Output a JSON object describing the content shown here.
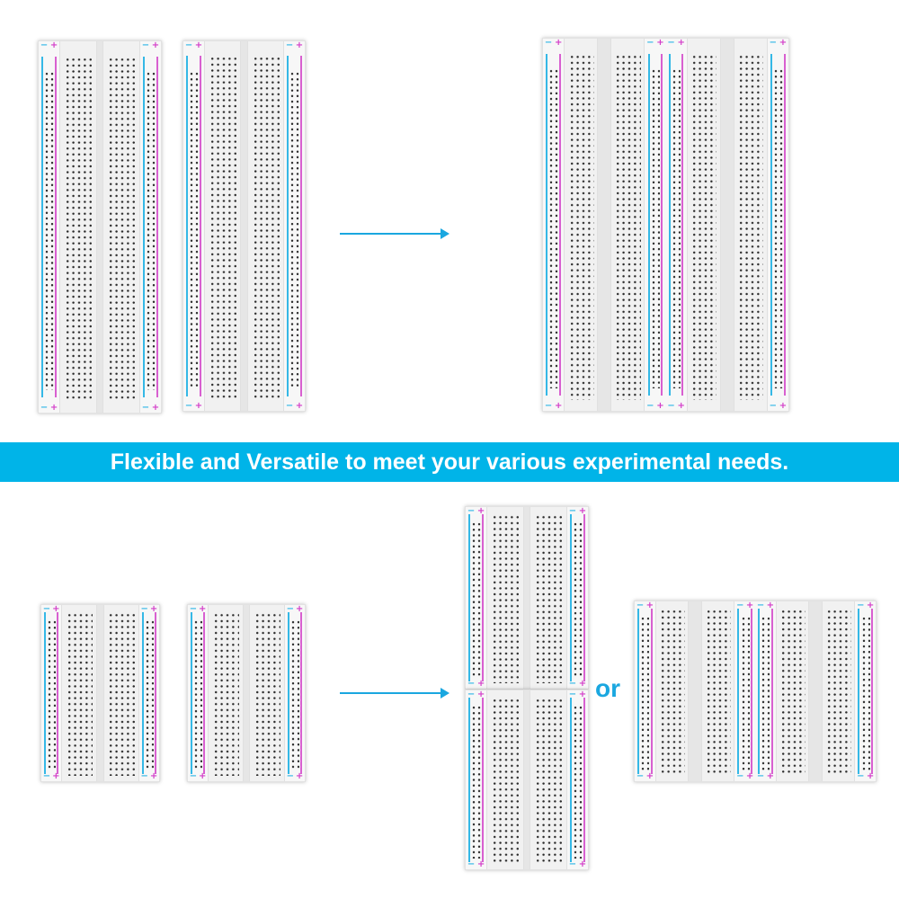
{
  "banner": {
    "text": "Flexible and Versatile to meet your various experimental needs.",
    "color": "#00b4e8"
  },
  "connector_word": "or",
  "rail_labels": {
    "minus": "−",
    "plus": "+"
  },
  "colors": {
    "accent": "#1aa7e0",
    "rail_blue": "#35b8e6",
    "rail_pink": "#d860d0"
  },
  "sections": {
    "top": {
      "before": "two full-size breadboards",
      "after": "joined side by side"
    },
    "bottom": {
      "before": "two half-size breadboards",
      "after_options": [
        "stacked vertically",
        "joined side by side"
      ]
    }
  }
}
